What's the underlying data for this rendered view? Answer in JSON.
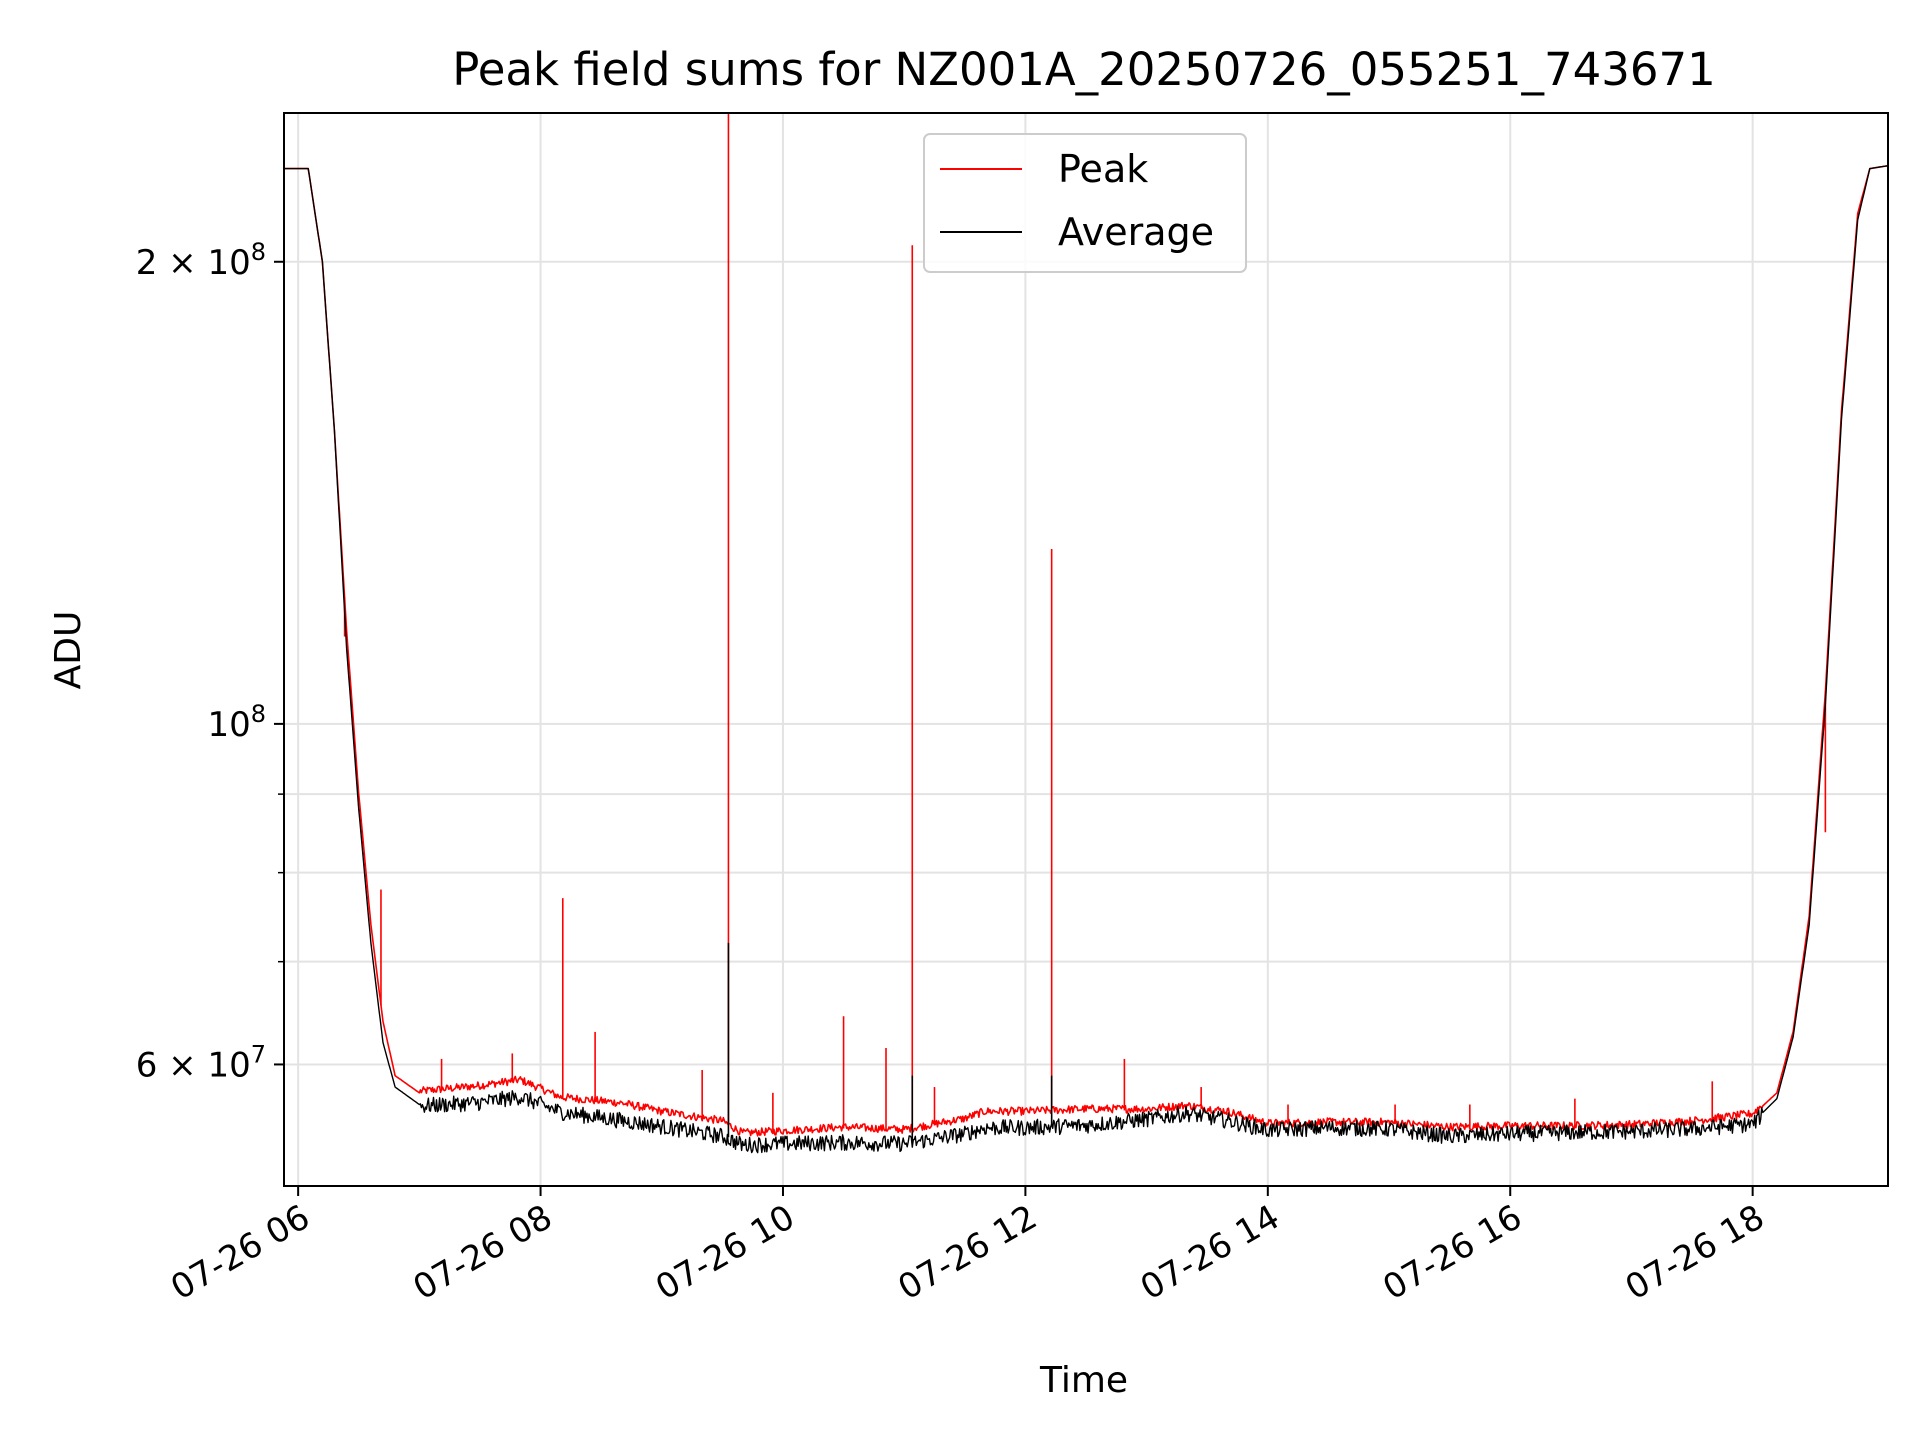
{
  "chart_data": {
    "type": "line",
    "title": "Peak field sums for NZ001A_20250726_055251_743671",
    "xlabel": "Time",
    "ylabel": "ADU",
    "y_scale": "log",
    "ylim": [
      50000000,
      250000000
    ],
    "xlim": [
      "2025-07-26 05:53",
      "2025-07-26 19:07"
    ],
    "grid": true,
    "legend_position": "upper center",
    "x_ticks": [
      {
        "value": "2025-07-26 06:00",
        "label": "07-26 06"
      },
      {
        "value": "2025-07-26 08:00",
        "label": "07-26 08"
      },
      {
        "value": "2025-07-26 10:00",
        "label": "07-26 10"
      },
      {
        "value": "2025-07-26 12:00",
        "label": "07-26 12"
      },
      {
        "value": "2025-07-26 14:00",
        "label": "07-26 14"
      },
      {
        "value": "2025-07-26 16:00",
        "label": "07-26 16"
      },
      {
        "value": "2025-07-26 18:00",
        "label": "07-26 18"
      }
    ],
    "y_ticks": [
      {
        "value": 60000000,
        "base": "6",
        "exp": "7"
      },
      {
        "value": 100000000,
        "base": "",
        "exp": "8"
      },
      {
        "value": 200000000,
        "base": "2",
        "exp": "8"
      }
    ],
    "y_minor_ticks": [
      70000000,
      80000000,
      90000000
    ],
    "series": [
      {
        "name": "Peak",
        "color": "#ff0000",
        "points": [
          [
            "2025-07-26 05:53",
            230000000
          ],
          [
            "2025-07-26 06:05",
            230000000
          ],
          [
            "2025-07-26 06:12",
            200000000
          ],
          [
            "2025-07-26 06:18",
            155000000
          ],
          [
            "2025-07-26 06:24",
            115000000
          ],
          [
            "2025-07-26 06:30",
            90000000
          ],
          [
            "2025-07-26 06:36",
            74000000
          ],
          [
            "2025-07-26 06:42",
            64000000
          ],
          [
            "2025-07-26 06:48",
            59000000
          ],
          [
            "2025-07-26 07:00",
            57500000
          ],
          [
            "2025-07-26 07:30",
            58000000
          ],
          [
            "2025-07-26 07:50",
            58500000
          ],
          [
            "2025-07-26 08:10",
            57000000
          ],
          [
            "2025-07-26 08:40",
            56500000
          ],
          [
            "2025-07-26 09:00",
            55800000
          ],
          [
            "2025-07-26 09:30",
            55000000
          ],
          [
            "2025-07-26 09:40",
            54000000
          ],
          [
            "2025-07-26 10:00",
            54200000
          ],
          [
            "2025-07-26 10:30",
            54500000
          ],
          [
            "2025-07-26 11:00",
            54300000
          ],
          [
            "2025-07-26 11:30",
            55200000
          ],
          [
            "2025-07-26 11:40",
            55800000
          ],
          [
            "2025-07-26 12:00",
            55800000
          ],
          [
            "2025-07-26 12:30",
            56000000
          ],
          [
            "2025-07-26 13:00",
            56000000
          ],
          [
            "2025-07-26 13:20",
            56300000
          ],
          [
            "2025-07-26 13:40",
            55800000
          ],
          [
            "2025-07-26 14:00",
            54800000
          ],
          [
            "2025-07-26 14:30",
            54900000
          ],
          [
            "2025-07-26 15:00",
            54900000
          ],
          [
            "2025-07-26 15:30",
            54500000
          ],
          [
            "2025-07-26 16:00",
            54600000
          ],
          [
            "2025-07-26 16:30",
            54600000
          ],
          [
            "2025-07-26 17:00",
            54700000
          ],
          [
            "2025-07-26 17:30",
            55000000
          ],
          [
            "2025-07-26 18:00",
            55600000
          ],
          [
            "2025-07-26 18:12",
            57500000
          ],
          [
            "2025-07-26 18:20",
            63000000
          ],
          [
            "2025-07-26 18:28",
            75000000
          ],
          [
            "2025-07-26 18:36",
            105000000
          ],
          [
            "2025-07-26 18:44",
            160000000
          ],
          [
            "2025-07-26 18:52",
            215000000
          ],
          [
            "2025-07-26 18:58",
            230000000
          ],
          [
            "2025-07-26 19:07",
            231000000
          ]
        ],
        "spikes": [
          [
            "2025-07-26 06:23",
            114000000
          ],
          [
            "2025-07-26 06:41",
            78000000
          ],
          [
            "2025-07-26 07:11",
            60500000
          ],
          [
            "2025-07-26 07:46",
            61000000
          ],
          [
            "2025-07-26 08:11",
            77000000
          ],
          [
            "2025-07-26 08:27",
            63000000
          ],
          [
            "2025-07-26 09:20",
            59500000
          ],
          [
            "2025-07-26 09:33",
            250000000
          ],
          [
            "2025-07-26 09:55",
            57500000
          ],
          [
            "2025-07-26 10:30",
            64500000
          ],
          [
            "2025-07-26 10:51",
            61500000
          ],
          [
            "2025-07-26 11:04",
            205000000
          ],
          [
            "2025-07-26 11:15",
            58000000
          ],
          [
            "2025-07-26 12:13",
            130000000
          ],
          [
            "2025-07-26 12:49",
            60500000
          ],
          [
            "2025-07-26 13:27",
            58000000
          ],
          [
            "2025-07-26 14:10",
            56500000
          ],
          [
            "2025-07-26 15:03",
            56500000
          ],
          [
            "2025-07-26 15:40",
            56500000
          ],
          [
            "2025-07-26 16:32",
            57000000
          ],
          [
            "2025-07-26 17:40",
            58500000
          ],
          [
            "2025-07-26 18:36",
            85000000
          ]
        ]
      },
      {
        "name": "Average",
        "color": "#000000",
        "points": [
          [
            "2025-07-26 05:53",
            230000000
          ],
          [
            "2025-07-26 06:05",
            230000000
          ],
          [
            "2025-07-26 06:12",
            200000000
          ],
          [
            "2025-07-26 06:18",
            155000000
          ],
          [
            "2025-07-26 06:24",
            112000000
          ],
          [
            "2025-07-26 06:30",
            88000000
          ],
          [
            "2025-07-26 06:36",
            72000000
          ],
          [
            "2025-07-26 06:42",
            62000000
          ],
          [
            "2025-07-26 06:48",
            58000000
          ],
          [
            "2025-07-26 07:00",
            56500000
          ],
          [
            "2025-07-26 07:30",
            56800000
          ],
          [
            "2025-07-26 07:50",
            57300000
          ],
          [
            "2025-07-26 08:10",
            56000000
          ],
          [
            "2025-07-26 08:40",
            55300000
          ],
          [
            "2025-07-26 09:00",
            54800000
          ],
          [
            "2025-07-26 09:30",
            54000000
          ],
          [
            "2025-07-26 09:40",
            53300000
          ],
          [
            "2025-07-26 10:00",
            53400000
          ],
          [
            "2025-07-26 10:30",
            53500000
          ],
          [
            "2025-07-26 11:00",
            53400000
          ],
          [
            "2025-07-26 11:30",
            54200000
          ],
          [
            "2025-07-26 11:40",
            54700000
          ],
          [
            "2025-07-26 12:00",
            54700000
          ],
          [
            "2025-07-26 12:30",
            54900000
          ],
          [
            "2025-07-26 13:00",
            55400000
          ],
          [
            "2025-07-26 13:20",
            55900000
          ],
          [
            "2025-07-26 13:40",
            55300000
          ],
          [
            "2025-07-26 14:00",
            54500000
          ],
          [
            "2025-07-26 14:30",
            54700000
          ],
          [
            "2025-07-26 15:00",
            54600000
          ],
          [
            "2025-07-26 15:30",
            54000000
          ],
          [
            "2025-07-26 16:00",
            54200000
          ],
          [
            "2025-07-26 16:30",
            54300000
          ],
          [
            "2025-07-26 17:00",
            54400000
          ],
          [
            "2025-07-26 17:30",
            54600000
          ],
          [
            "2025-07-26 18:00",
            55000000
          ],
          [
            "2025-07-26 18:12",
            57000000
          ],
          [
            "2025-07-26 18:20",
            62500000
          ],
          [
            "2025-07-26 18:28",
            74000000
          ],
          [
            "2025-07-26 18:36",
            103000000
          ],
          [
            "2025-07-26 18:44",
            158000000
          ],
          [
            "2025-07-26 18:52",
            213000000
          ],
          [
            "2025-07-26 18:58",
            230000000
          ],
          [
            "2025-07-26 19:07",
            231000000
          ]
        ],
        "spikes": [
          [
            "2025-07-26 09:33",
            72000000
          ],
          [
            "2025-07-26 11:04",
            59000000
          ],
          [
            "2025-07-26 12:13",
            59000000
          ]
        ]
      }
    ]
  }
}
